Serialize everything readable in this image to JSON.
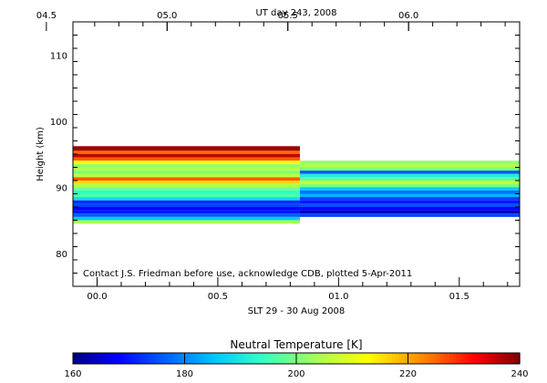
{
  "chart_data": {
    "type": "heatmap",
    "top_axis": {
      "label": "UT day 243, 2008",
      "ticks": [
        {
          "value": 4.5,
          "label": "04.5"
        },
        {
          "value": 5.0,
          "label": "05.0"
        },
        {
          "value": 5.5,
          "label": "05.5"
        },
        {
          "value": 6.0,
          "label": "06.0"
        }
      ]
    },
    "xaxis": {
      "label": "SLT 29 - 30 Aug 2008",
      "range": [
        -0.1,
        1.75
      ],
      "ticks": [
        {
          "value": 0.0,
          "label": "00.0"
        },
        {
          "value": 0.5,
          "label": "00.5"
        },
        {
          "value": 1.0,
          "label": "01.0"
        },
        {
          "value": 1.5,
          "label": "01.5"
        }
      ]
    },
    "yaxis": {
      "label": "Height (km)",
      "range": [
        75,
        115
      ],
      "ticks": [
        {
          "value": 80,
          "label": "80"
        },
        {
          "value": 90,
          "label": "90"
        },
        {
          "value": 100,
          "label": "100"
        },
        {
          "value": 110,
          "label": "110"
        }
      ]
    },
    "annotation": "Contact J.S. Friedman before use, acknowledge CDB, plotted 5-Apr-2011",
    "colorbar": {
      "title": "Neutral Temperature [K]",
      "range": [
        160,
        240
      ],
      "ticks": [
        160,
        180,
        200,
        220,
        240
      ]
    },
    "series": [
      {
        "x_start": -0.1,
        "x_end": 0.84,
        "layers": [
          {
            "h": [
              95.5,
              96.2
            ],
            "t": 238
          },
          {
            "h": [
              95.0,
              95.5
            ],
            "t": 225
          },
          {
            "h": [
              94.5,
              95.0
            ],
            "t": 236
          },
          {
            "h": [
              94.0,
              94.5
            ],
            "t": 226
          },
          {
            "h": [
              93.5,
              94.0
            ],
            "t": 212
          },
          {
            "h": [
              93.0,
              93.5
            ],
            "t": 202
          },
          {
            "h": [
              92.5,
              93.0
            ],
            "t": 205
          },
          {
            "h": [
              92.0,
              92.5
            ],
            "t": 200
          },
          {
            "h": [
              91.5,
              92.0
            ],
            "t": 206
          },
          {
            "h": [
              91.0,
              91.5
            ],
            "t": 226
          },
          {
            "h": [
              90.5,
              91.0
            ],
            "t": 216
          },
          {
            "h": [
              90.0,
              90.5
            ],
            "t": 205
          },
          {
            "h": [
              89.5,
              90.0
            ],
            "t": 199
          },
          {
            "h": [
              89.0,
              89.5
            ],
            "t": 193
          },
          {
            "h": [
              88.5,
              89.0
            ],
            "t": 196
          },
          {
            "h": [
              88.0,
              88.5
            ],
            "t": 188
          },
          {
            "h": [
              87.5,
              88.0
            ],
            "t": 172
          },
          {
            "h": [
              87.0,
              87.5
            ],
            "t": 174
          },
          {
            "h": [
              86.5,
              87.0
            ],
            "t": 168
          },
          {
            "h": [
              86.0,
              86.5
            ],
            "t": 170
          },
          {
            "h": [
              85.5,
              86.0
            ],
            "t": 176
          },
          {
            "h": [
              85.0,
              85.5
            ],
            "t": 186
          },
          {
            "h": [
              84.5,
              85.0
            ],
            "t": 204
          }
        ]
      },
      {
        "x_start": 0.84,
        "x_end": 1.75,
        "layers": [
          {
            "h": [
              93.5,
              94.0
            ],
            "t": 202
          },
          {
            "h": [
              93.0,
              93.5
            ],
            "t": 205
          },
          {
            "h": [
              92.5,
              93.0
            ],
            "t": 200
          },
          {
            "h": [
              92.0,
              92.5
            ],
            "t": 176
          },
          {
            "h": [
              91.5,
              92.0
            ],
            "t": 191
          },
          {
            "h": [
              91.0,
              91.5
            ],
            "t": 197
          },
          {
            "h": [
              90.5,
              91.0
            ],
            "t": 207
          },
          {
            "h": [
              90.0,
              90.5
            ],
            "t": 200
          },
          {
            "h": [
              89.5,
              90.0
            ],
            "t": 186
          },
          {
            "h": [
              89.0,
              89.5
            ],
            "t": 178
          },
          {
            "h": [
              88.5,
              89.0
            ],
            "t": 184
          },
          {
            "h": [
              88.0,
              88.5
            ],
            "t": 173
          },
          {
            "h": [
              87.5,
              88.0
            ],
            "t": 170
          },
          {
            "h": [
              87.0,
              87.5
            ],
            "t": 175
          },
          {
            "h": [
              86.5,
              87.0
            ],
            "t": 168
          },
          {
            "h": [
              86.0,
              86.5
            ],
            "t": 164
          },
          {
            "h": [
              85.5,
              86.0
            ],
            "t": 174
          }
        ]
      }
    ]
  }
}
